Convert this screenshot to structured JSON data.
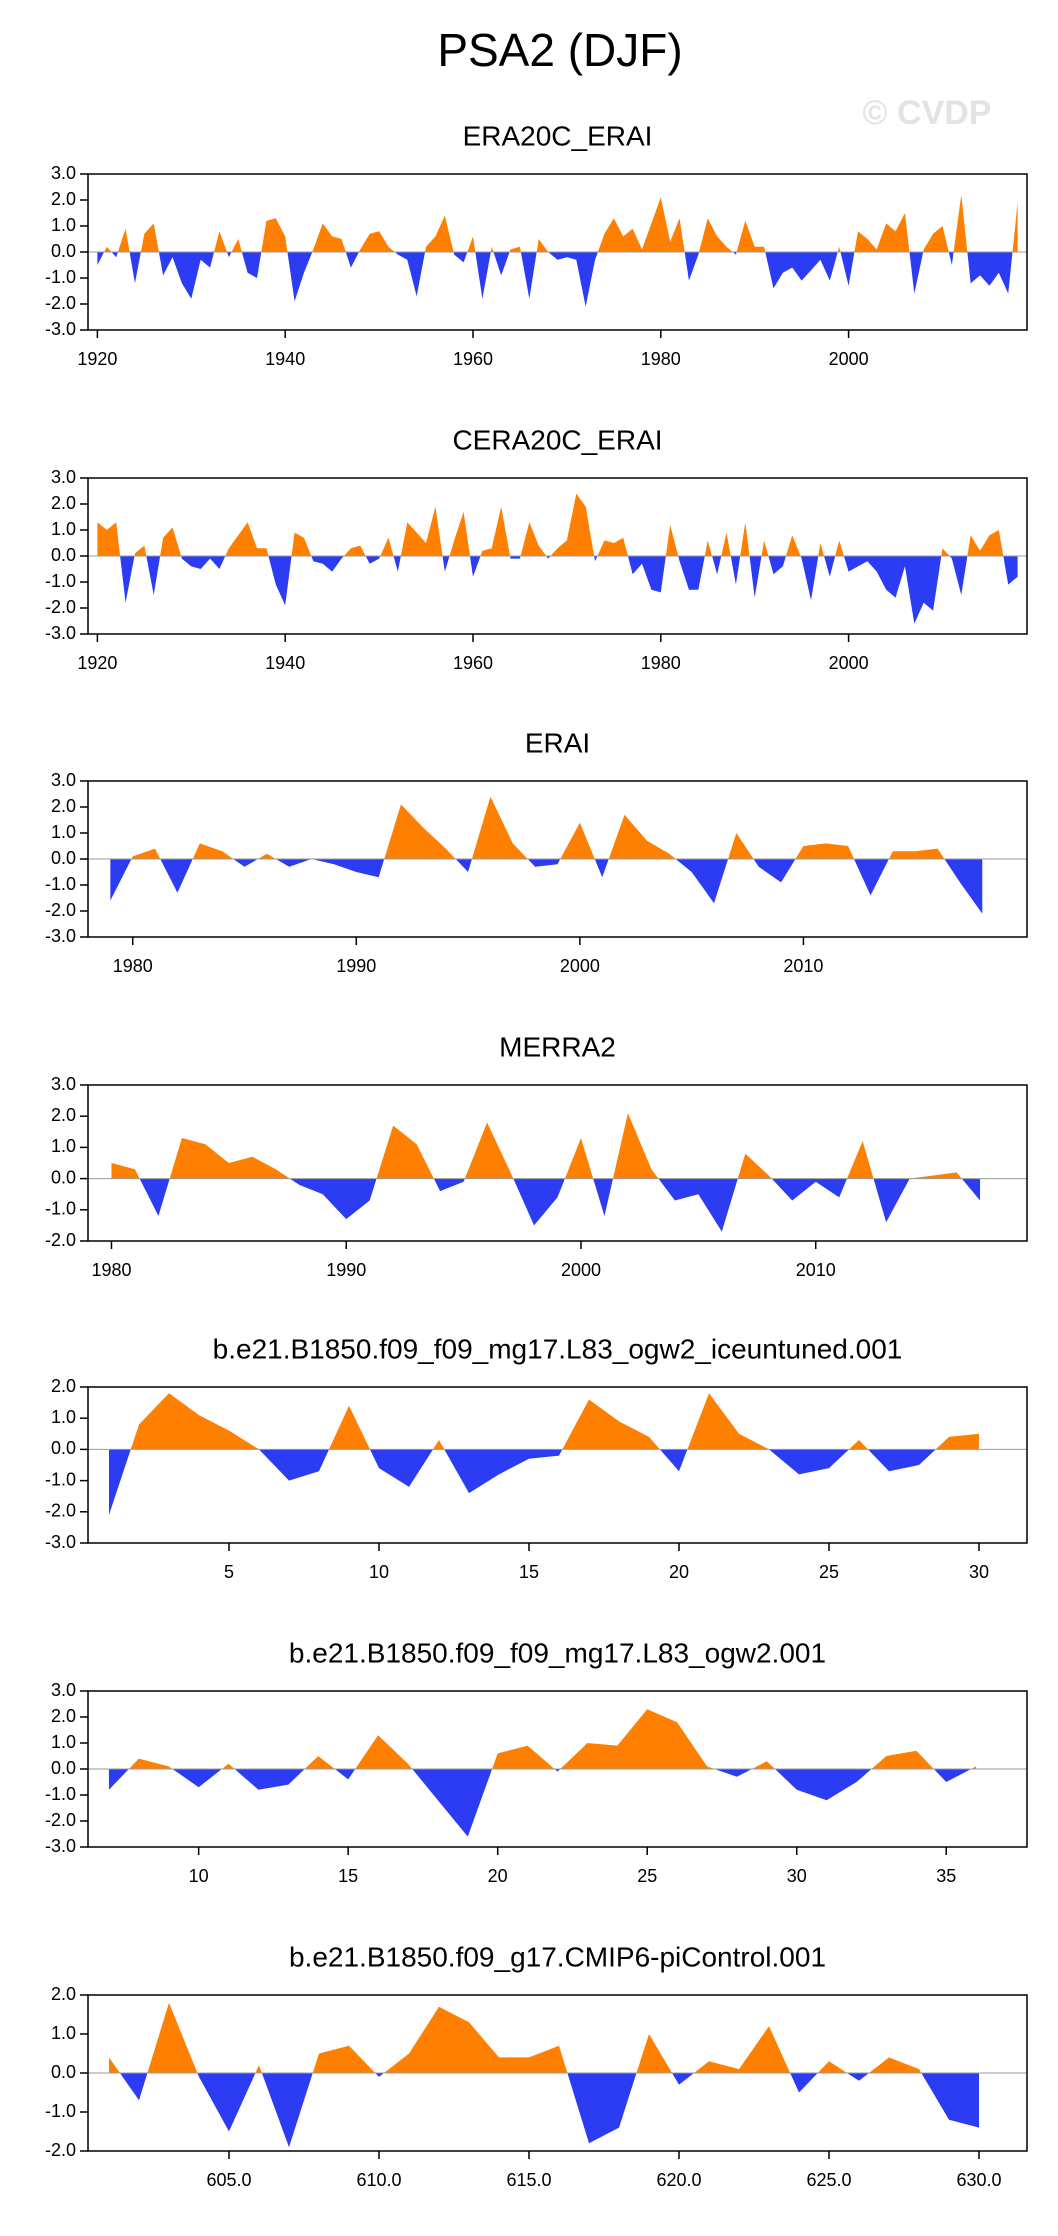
{
  "title": "PSA2 (DJF)",
  "watermark": "© CVDP",
  "chart_data": [
    {
      "type": "area",
      "title": "ERA20C_ERAI",
      "x": [
        1920,
        1921,
        1922,
        1923,
        1924,
        1925,
        1926,
        1927,
        1928,
        1929,
        1930,
        1931,
        1932,
        1933,
        1934,
        1935,
        1936,
        1937,
        1938,
        1939,
        1940,
        1941,
        1942,
        1943,
        1944,
        1945,
        1946,
        1947,
        1948,
        1949,
        1950,
        1951,
        1952,
        1953,
        1954,
        1955,
        1956,
        1957,
        1958,
        1959,
        1960,
        1961,
        1962,
        1963,
        1964,
        1965,
        1966,
        1967,
        1968,
        1969,
        1970,
        1971,
        1972,
        1973,
        1974,
        1975,
        1976,
        1977,
        1978,
        1979,
        1980,
        1981,
        1982,
        1983,
        1984,
        1985,
        1986,
        1987,
        1988,
        1989,
        1990,
        1991,
        1992,
        1993,
        1994,
        1995,
        1996,
        1997,
        1998,
        1999,
        2000,
        2001,
        2002,
        2003,
        2004,
        2005,
        2006,
        2007,
        2008,
        2009,
        2010,
        2011,
        2012,
        2013,
        2014,
        2015,
        2016,
        2017,
        2018
      ],
      "values": [
        -0.5,
        0.2,
        -0.2,
        0.9,
        -1.2,
        0.7,
        1.1,
        -0.9,
        -0.2,
        -1.2,
        -1.8,
        -0.3,
        -0.6,
        0.8,
        -0.2,
        0.5,
        -0.8,
        -1.0,
        1.2,
        1.3,
        0.6,
        -1.9,
        -0.8,
        0.1,
        1.1,
        0.6,
        0.5,
        -0.6,
        0.1,
        0.7,
        0.8,
        0.2,
        -0.1,
        -0.3,
        -1.7,
        0.2,
        0.6,
        1.4,
        -0.1,
        -0.4,
        0.6,
        -1.8,
        0.2,
        -0.9,
        0.1,
        0.2,
        -1.8,
        0.5,
        0.0,
        -0.3,
        -0.2,
        -0.3,
        -2.1,
        -0.3,
        0.7,
        1.3,
        0.6,
        0.9,
        0.1,
        1.1,
        2.1,
        0.4,
        1.3,
        -1.1,
        -0.1,
        1.3,
        0.6,
        0.2,
        -0.1,
        1.2,
        0.2,
        0.2,
        -1.4,
        -0.8,
        -0.6,
        -1.1,
        -0.7,
        -0.3,
        -1.1,
        0.2,
        -1.3,
        0.8,
        0.5,
        0.1,
        1.1,
        0.8,
        1.5,
        -1.6,
        0.1,
        0.7,
        1.0,
        -0.5,
        2.2,
        -1.2,
        -0.9,
        -1.3,
        -0.8,
        -1.6,
        1.9
      ],
      "colors": {
        "positive": "#ff8000",
        "negative": "#2b3cf2"
      },
      "xlim": [
        1919,
        2019
      ],
      "xticks": [
        1920,
        1940,
        1960,
        1980,
        2000
      ],
      "ylim": [
        -3,
        3
      ],
      "yticks": [
        {
          "value": -3,
          "label": "-3.0"
        },
        {
          "value": -2,
          "label": "-2.0"
        },
        {
          "value": -1,
          "label": "-1.0"
        },
        {
          "value": 0,
          "label": "0.0"
        },
        {
          "value": 1,
          "label": "1.0"
        },
        {
          "value": 2,
          "label": "2.0"
        },
        {
          "value": 3,
          "label": "3.0"
        }
      ]
    },
    {
      "type": "area",
      "title": "CERA20C_ERAI",
      "x": [
        1920,
        1921,
        1922,
        1923,
        1924,
        1925,
        1926,
        1927,
        1928,
        1929,
        1930,
        1931,
        1932,
        1933,
        1934,
        1935,
        1936,
        1937,
        1938,
        1939,
        1940,
        1941,
        1942,
        1943,
        1944,
        1945,
        1946,
        1947,
        1948,
        1949,
        1950,
        1951,
        1952,
        1953,
        1954,
        1955,
        1956,
        1957,
        1958,
        1959,
        1960,
        1961,
        1962,
        1963,
        1964,
        1965,
        1966,
        1967,
        1968,
        1969,
        1970,
        1971,
        1972,
        1973,
        1974,
        1975,
        1976,
        1977,
        1978,
        1979,
        1980,
        1981,
        1982,
        1983,
        1984,
        1985,
        1986,
        1987,
        1988,
        1989,
        1990,
        1991,
        1992,
        1993,
        1994,
        1995,
        1996,
        1997,
        1998,
        1999,
        2000,
        2001,
        2002,
        2003,
        2004,
        2005,
        2006,
        2007,
        2008,
        2009,
        2010,
        2011,
        2012,
        2013,
        2014,
        2015,
        2016,
        2017,
        2018
      ],
      "values": [
        1.3,
        1.0,
        1.3,
        -1.8,
        0.1,
        0.4,
        -1.5,
        0.7,
        1.1,
        -0.1,
        -0.4,
        -0.5,
        -0.1,
        -0.5,
        0.3,
        0.8,
        1.3,
        0.3,
        0.3,
        -1.1,
        -1.9,
        0.9,
        0.7,
        -0.2,
        -0.3,
        -0.6,
        -0.1,
        0.3,
        0.4,
        -0.3,
        -0.1,
        0.7,
        -0.6,
        1.3,
        0.9,
        0.5,
        1.9,
        -0.6,
        0.6,
        1.7,
        -0.8,
        0.2,
        0.3,
        1.9,
        -0.1,
        -0.1,
        1.3,
        0.4,
        -0.1,
        0.3,
        0.6,
        2.4,
        1.9,
        -0.2,
        0.6,
        0.5,
        0.7,
        -0.7,
        -0.3,
        -1.3,
        -1.4,
        1.2,
        -0.2,
        -1.3,
        -1.3,
        0.6,
        -0.7,
        0.9,
        -1.1,
        1.3,
        -1.6,
        0.6,
        -0.7,
        -0.4,
        0.8,
        -0.1,
        -1.7,
        0.5,
        -0.8,
        0.6,
        -0.6,
        -0.4,
        -0.2,
        -0.6,
        -1.3,
        -1.6,
        -0.4,
        -2.6,
        -1.8,
        -2.1,
        0.3,
        -0.1,
        -1.5,
        0.8,
        0.2,
        0.8,
        1.0,
        -1.1,
        -0.8
      ],
      "colors": {
        "positive": "#ff8000",
        "negative": "#2b3cf2"
      },
      "xlim": [
        1919,
        2019
      ],
      "xticks": [
        1920,
        1940,
        1960,
        1980,
        2000
      ],
      "ylim": [
        -3,
        3
      ],
      "yticks": [
        {
          "value": -3,
          "label": "-3.0"
        },
        {
          "value": -2,
          "label": "-2.0"
        },
        {
          "value": -1,
          "label": "-1.0"
        },
        {
          "value": 0,
          "label": "0.0"
        },
        {
          "value": 1,
          "label": "1.0"
        },
        {
          "value": 2,
          "label": "2.0"
        },
        {
          "value": 3,
          "label": "3.0"
        }
      ]
    },
    {
      "type": "area",
      "title": "ERAI",
      "x": [
        1979,
        1980,
        1981,
        1982,
        1983,
        1984,
        1985,
        1986,
        1987,
        1988,
        1989,
        1990,
        1991,
        1992,
        1993,
        1994,
        1995,
        1996,
        1997,
        1998,
        1999,
        2000,
        2001,
        2002,
        2003,
        2004,
        2005,
        2006,
        2007,
        2008,
        2009,
        2010,
        2011,
        2012,
        2013,
        2014,
        2015,
        2016,
        2017,
        2018
      ],
      "values": [
        -1.6,
        0.1,
        0.4,
        -1.3,
        0.6,
        0.3,
        -0.3,
        0.2,
        -0.3,
        0.0,
        -0.2,
        -0.5,
        -0.7,
        2.1,
        1.2,
        0.4,
        -0.5,
        2.4,
        0.6,
        -0.3,
        -0.2,
        1.4,
        -0.7,
        1.7,
        0.7,
        0.2,
        -0.5,
        -1.7,
        1.0,
        -0.3,
        -0.9,
        0.5,
        0.6,
        0.5,
        -1.4,
        0.3,
        0.3,
        0.4,
        -0.9,
        -2.1
      ],
      "colors": {
        "positive": "#ff8000",
        "negative": "#2b3cf2"
      },
      "xlim": [
        1978,
        2020
      ],
      "xticks": [
        1980,
        1990,
        2000,
        2010
      ],
      "ylim": [
        -3,
        3
      ],
      "yticks": [
        {
          "value": -3,
          "label": "-3.0"
        },
        {
          "value": -2,
          "label": "-2.0"
        },
        {
          "value": -1,
          "label": "-1.0"
        },
        {
          "value": 0,
          "label": "0.0"
        },
        {
          "value": 1,
          "label": "1.0"
        },
        {
          "value": 2,
          "label": "2.0"
        },
        {
          "value": 3,
          "label": "3.0"
        }
      ]
    },
    {
      "type": "area",
      "title": "MERRA2",
      "x": [
        1980,
        1981,
        1982,
        1983,
        1984,
        1985,
        1986,
        1987,
        1988,
        1989,
        1990,
        1991,
        1992,
        1993,
        1994,
        1995,
        1996,
        1997,
        1998,
        1999,
        2000,
        2001,
        2002,
        2003,
        2004,
        2005,
        2006,
        2007,
        2008,
        2009,
        2010,
        2011,
        2012,
        2013,
        2014,
        2015,
        2016,
        2017
      ],
      "values": [
        0.5,
        0.3,
        -1.2,
        1.3,
        1.1,
        0.5,
        0.7,
        0.3,
        -0.2,
        -0.5,
        -1.3,
        -0.7,
        1.7,
        1.1,
        -0.4,
        -0.1,
        1.8,
        0.2,
        -1.5,
        -0.6,
        1.3,
        -1.2,
        2.1,
        0.3,
        -0.7,
        -0.5,
        -1.7,
        0.8,
        0.1,
        -0.7,
        -0.1,
        -0.6,
        1.2,
        -1.4,
        0.0,
        0.1,
        0.2,
        -0.7
      ],
      "colors": {
        "positive": "#ff8000",
        "negative": "#2b3cf2"
      },
      "xlim": [
        1979,
        2019
      ],
      "xticks": [
        1980,
        1990,
        2000,
        2010
      ],
      "ylim": [
        -2,
        3
      ],
      "yticks": [
        {
          "value": -2,
          "label": "-2.0"
        },
        {
          "value": -1,
          "label": "-1.0"
        },
        {
          "value": 0,
          "label": "0.0"
        },
        {
          "value": 1,
          "label": "1.0"
        },
        {
          "value": 2,
          "label": "2.0"
        },
        {
          "value": 3,
          "label": "3.0"
        }
      ]
    },
    {
      "type": "area",
      "title": "b.e21.B1850.f09_f09_mg17.L83_ogw2_iceuntuned.001",
      "x": [
        1,
        2,
        3,
        4,
        5,
        6,
        7,
        8,
        9,
        10,
        11,
        12,
        13,
        14,
        15,
        16,
        17,
        18,
        19,
        20,
        21,
        22,
        23,
        24,
        25,
        26,
        27,
        28,
        29,
        30
      ],
      "values": [
        -2.1,
        0.8,
        1.8,
        1.1,
        0.6,
        0.0,
        -1.0,
        -0.7,
        1.4,
        -0.6,
        -1.2,
        0.3,
        -1.4,
        -0.8,
        -0.3,
        -0.2,
        1.6,
        0.9,
        0.4,
        -0.7,
        1.8,
        0.5,
        0.0,
        -0.8,
        -0.6,
        0.3,
        -0.7,
        -0.5,
        0.4,
        0.5
      ],
      "colors": {
        "positive": "#ff8000",
        "negative": "#2b3cf2"
      },
      "xlim": [
        0.3,
        31.6
      ],
      "xticks": [
        5,
        10,
        15,
        20,
        25,
        30
      ],
      "ylim": [
        -3,
        2
      ],
      "yticks": [
        {
          "value": -3,
          "label": "-3.0"
        },
        {
          "value": -2,
          "label": "-2.0"
        },
        {
          "value": -1,
          "label": "-1.0"
        },
        {
          "value": 0,
          "label": "0.0"
        },
        {
          "value": 1,
          "label": "1.0"
        },
        {
          "value": 2,
          "label": "2.0"
        }
      ]
    },
    {
      "type": "area",
      "title": "b.e21.B1850.f09_f09_mg17.L83_ogw2.001",
      "x": [
        7,
        8,
        9,
        10,
        11,
        12,
        13,
        14,
        15,
        16,
        17,
        18,
        19,
        20,
        21,
        22,
        23,
        24,
        25,
        26,
        27,
        28,
        29,
        30,
        31,
        32,
        33,
        34,
        35,
        36
      ],
      "values": [
        -0.8,
        0.4,
        0.1,
        -0.7,
        0.2,
        -0.8,
        -0.6,
        0.5,
        -0.4,
        1.3,
        0.2,
        -1.2,
        -2.6,
        0.6,
        0.9,
        -0.1,
        1.0,
        0.9,
        2.3,
        1.8,
        0.1,
        -0.3,
        0.3,
        -0.8,
        -1.2,
        -0.5,
        0.5,
        0.7,
        -0.5,
        0.1
      ],
      "colors": {
        "positive": "#ff8000",
        "negative": "#2b3cf2"
      },
      "xlim": [
        6.3,
        37.7
      ],
      "xticks": [
        10,
        15,
        20,
        25,
        30,
        35
      ],
      "ylim": [
        -3,
        3
      ],
      "yticks": [
        {
          "value": -3,
          "label": "-3.0"
        },
        {
          "value": -2,
          "label": "-2.0"
        },
        {
          "value": -1,
          "label": "-1.0"
        },
        {
          "value": 0,
          "label": "0.0"
        },
        {
          "value": 1,
          "label": "1.0"
        },
        {
          "value": 2,
          "label": "2.0"
        },
        {
          "value": 3,
          "label": "3.0"
        }
      ]
    },
    {
      "type": "area",
      "title": "b.e21.B1850.f09_g17.CMIP6-piControl.001",
      "x": [
        601,
        602,
        603,
        604,
        605,
        606,
        607,
        608,
        609,
        610,
        611,
        612,
        613,
        614,
        615,
        616,
        617,
        618,
        619,
        620,
        621,
        622,
        623,
        624,
        625,
        626,
        627,
        628,
        629,
        630
      ],
      "values": [
        0.4,
        -0.7,
        1.8,
        -0.1,
        -1.5,
        0.2,
        -1.9,
        0.5,
        0.7,
        -0.1,
        0.5,
        1.7,
        1.3,
        0.4,
        0.4,
        0.7,
        -1.8,
        -1.4,
        1.0,
        -0.3,
        0.3,
        0.1,
        1.2,
        -0.5,
        0.3,
        -0.2,
        0.4,
        0.1,
        -1.2,
        -1.4
      ],
      "colors": {
        "positive": "#ff8000",
        "negative": "#2b3cf2"
      },
      "xlim": [
        600.3,
        631.6
      ],
      "xticks": [
        {
          "value": 605,
          "label": "605.0"
        },
        {
          "value": 610,
          "label": "610.0"
        },
        {
          "value": 615,
          "label": "615.0"
        },
        {
          "value": 620,
          "label": "620.0"
        },
        {
          "value": 625,
          "label": "625.0"
        },
        {
          "value": 630,
          "label": "630.0"
        }
      ],
      "ylim": [
        -2,
        2
      ],
      "yticks": [
        {
          "value": -2,
          "label": "-2.0"
        },
        {
          "value": -1,
          "label": "-1.0"
        },
        {
          "value": 0,
          "label": "0.0"
        },
        {
          "value": 1,
          "label": "1.0"
        },
        {
          "value": 2,
          "label": "2.0"
        }
      ]
    }
  ]
}
